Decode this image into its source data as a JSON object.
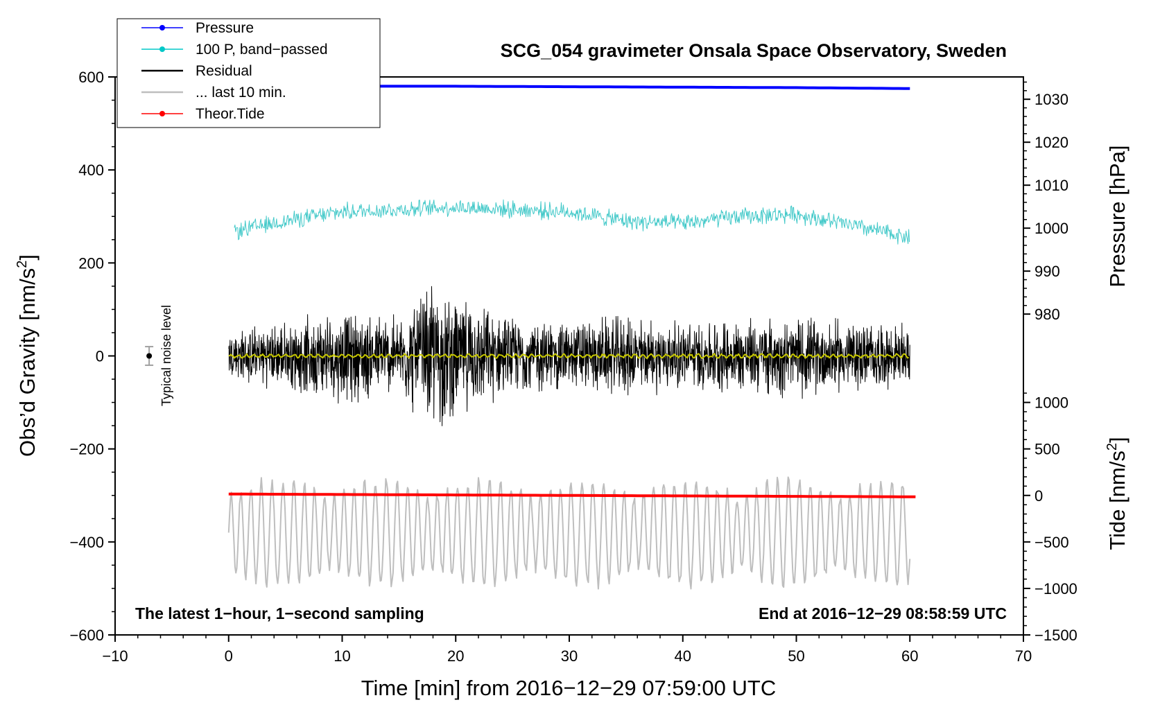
{
  "chart_data": {
    "type": "line",
    "title": "SCG_054 gravimeter Onsala Space Observatory, Sweden",
    "xlabel": "Time [min] from 2016−12−29 07:59:00 UTC",
    "ylabel_left": "Obs’d Gravity [nm/s",
    "ylabel_left_sup": "2",
    "ylabel_left_end": "]",
    "ylabel_right_pressure": "Pressure [hPa]",
    "ylabel_right_tide": "Tide [nm/s",
    "ylabel_right_tide_sup": "2",
    "ylabel_right_tide_end": "]",
    "xlim": [
      -10,
      70
    ],
    "ylim_left": [
      -600,
      600
    ],
    "x_ticks": [
      "−10",
      "0",
      "10",
      "20",
      "30",
      "40",
      "50",
      "60",
      "70"
    ],
    "x_tick_values": [
      -10,
      0,
      10,
      20,
      30,
      40,
      50,
      60,
      70
    ],
    "y_ticks_left": [
      "600",
      "400",
      "200",
      "0",
      "−200",
      "−400",
      "−600"
    ],
    "y_tick_values_left": [
      600,
      400,
      200,
      0,
      -200,
      -400,
      -600
    ],
    "pressure_axis": {
      "ticks": [
        "1030",
        "1020",
        "1010",
        "1000",
        "990",
        "980"
      ],
      "values": [
        1030,
        1020,
        1010,
        1000,
        990,
        980
      ],
      "map": {
        "hPa_a": 1030,
        "gravity_a": 552,
        "hPa_b": 980,
        "gravity_b": 90
      }
    },
    "tide_axis": {
      "ticks": [
        "1000",
        "500",
        "0",
        "−500",
        "−1000",
        "−1500"
      ],
      "values": [
        1000,
        500,
        0,
        -500,
        -1000,
        -1500
      ],
      "map": {
        "tide_a": 0,
        "gravity_a": -300,
        "tide_b": -1500,
        "gravity_b": -600
      }
    },
    "annotations": {
      "left": "The latest 1−hour, 1−second sampling",
      "right": "End at 2016−12−29 08:58:59 UTC",
      "noise_label": "Typical noise level"
    },
    "noise_marker": {
      "x": -7,
      "y": 0,
      "err": 20
    },
    "legend": [
      {
        "label": "Pressure",
        "color": "#0000ff",
        "marker": true
      },
      {
        "label": "100 P, band−passed",
        "color": "#00c8c8",
        "marker": true
      },
      {
        "label": "Residual",
        "color": "#000000",
        "marker": false
      },
      {
        "label": "... last 10 min.",
        "color": "#bebebe",
        "marker": false
      },
      {
        "label": "Theor.Tide",
        "color": "#ff0000",
        "marker": true
      }
    ],
    "series": [
      {
        "name": "Pressure",
        "color": "#0000ff",
        "x": [
          0,
          10,
          20,
          30,
          40,
          50,
          55,
          60
        ],
        "y": [
          581,
          580,
          580,
          579,
          578,
          577,
          576,
          575
        ]
      },
      {
        "name": "100 P, band−passed",
        "color": "#40c8c8",
        "x": [
          0,
          5,
          10,
          15,
          20,
          25,
          30,
          35,
          40,
          45,
          50,
          55,
          60
        ],
        "y": [
          265,
          290,
          310,
          315,
          320,
          315,
          310,
          290,
          285,
          300,
          305,
          280,
          255
        ]
      },
      {
        "name": "Residual",
        "color": "#000000",
        "x": [
          0,
          5,
          10,
          15,
          18,
          20,
          25,
          30,
          35,
          40,
          45,
          50,
          55,
          60
        ],
        "y": [
          60,
          80,
          110,
          95,
          180,
          140,
          90,
          85,
          95,
          80,
          90,
          95,
          85,
          70
        ]
      },
      {
        "name": "Residual filtered",
        "color": "#c8c800",
        "x": [
          0,
          60
        ],
        "y": [
          0,
          0
        ]
      },
      {
        "name": "... last 10 min.",
        "color": "#bebebe",
        "x": [
          0,
          60
        ],
        "y": [
          -380,
          -380
        ]
      },
      {
        "name": "Theor.Tide",
        "color": "#ff0000",
        "x": [
          0,
          10,
          20,
          30,
          40,
          50,
          60.5
        ],
        "y": [
          -297,
          -298,
          -299,
          -300,
          -301,
          -302,
          -303
        ]
      }
    ]
  }
}
